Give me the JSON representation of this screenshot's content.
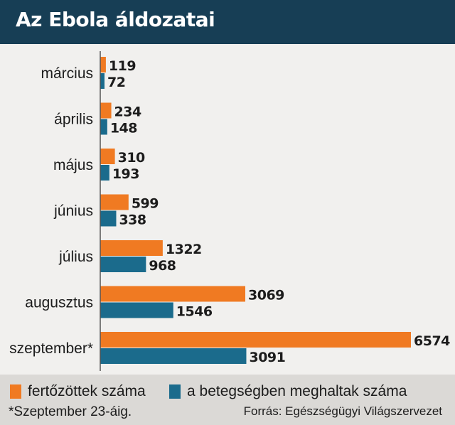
{
  "title": "Az Ebola áldozatai",
  "colors": {
    "infected": "#f07a22",
    "deaths": "#1b6b8c",
    "header": "#173e55"
  },
  "chart_data": {
    "type": "bar",
    "orientation": "horizontal",
    "categories": [
      "március",
      "április",
      "május",
      "június",
      "július",
      "augusztus",
      "szeptember*"
    ],
    "series": [
      {
        "name": "fertőzöttek száma",
        "values": [
          119,
          234,
          310,
          599,
          1322,
          3069,
          6574
        ]
      },
      {
        "name": "a betegségben meghaltak száma",
        "values": [
          72,
          148,
          193,
          338,
          968,
          1546,
          3091
        ]
      }
    ],
    "xlim": [
      0,
      6574
    ],
    "grid": false,
    "legend_position": "bottom"
  },
  "legend": {
    "infected_label": "fertőzöttek száma",
    "deaths_label": "a betegségben meghaltak száma"
  },
  "footnote": "*Szeptember 23-áig.",
  "source": "Forrás: Egészségügyi Világszervezet"
}
